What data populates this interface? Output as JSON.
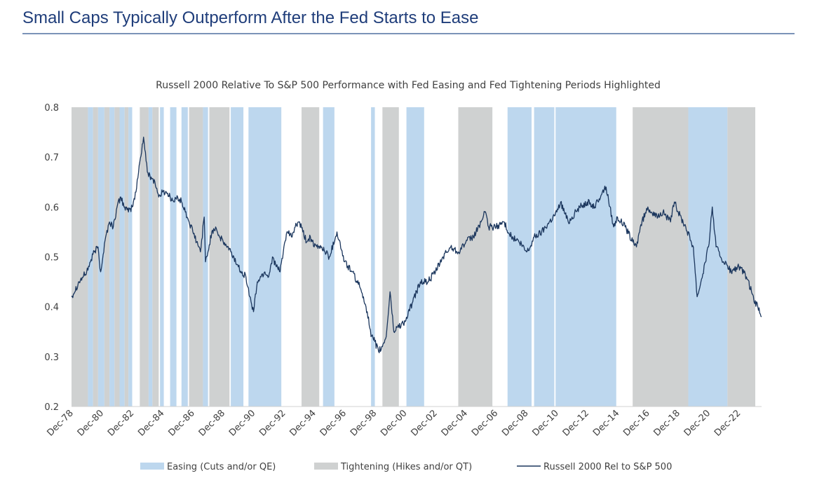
{
  "page": {
    "title": "Small Caps Typically Outperform After the Fed Starts to Ease"
  },
  "chart_data": {
    "type": "line",
    "title": "Russell 2000 Relative To S&P 500 Performance with Fed Easing and Fed Tightening Periods Highlighted",
    "xlabel": "",
    "ylabel": "",
    "x_range": [
      "1978-12",
      "2024-06"
    ],
    "ylim": [
      0.2,
      0.8
    ],
    "y_ticks": [
      "0.2",
      "0.3",
      "0.4",
      "0.5",
      "0.6",
      "0.7",
      "0.8"
    ],
    "x_ticks": [
      "Dec-78",
      "Dec-80",
      "Dec-82",
      "Dec-84",
      "Dec-86",
      "Dec-88",
      "Dec-90",
      "Dec-92",
      "Dec-94",
      "Dec-96",
      "Dec-98",
      "Dec-00",
      "Dec-02",
      "Dec-04",
      "Dec-06",
      "Dec-08",
      "Dec-10",
      "Dec-12",
      "Dec-14",
      "Dec-16",
      "Dec-18",
      "Dec-20",
      "Dec-22"
    ],
    "grid": false,
    "legend_position": "bottom",
    "colors": {
      "easing": "#bdd7ee",
      "tightening": "#cfd1d1",
      "line": "#1b365d"
    },
    "legend": [
      {
        "key": "easing",
        "label": "Easing (Cuts and/or QE)"
      },
      {
        "key": "tightening",
        "label": "Tightening (Hikes and/or QT)"
      },
      {
        "key": "line",
        "label": "Russell 2000 Rel to S&P 500"
      }
    ],
    "shaded_periods": [
      {
        "kind": "tightening",
        "start": "1978-12",
        "end": "1979-12"
      },
      {
        "kind": "easing",
        "start": "1980-01",
        "end": "1980-04"
      },
      {
        "kind": "tightening",
        "start": "1980-05",
        "end": "1980-08"
      },
      {
        "kind": "easing",
        "start": "1980-09",
        "end": "1981-01"
      },
      {
        "kind": "tightening",
        "start": "1981-02",
        "end": "1981-05"
      },
      {
        "kind": "easing",
        "start": "1981-06",
        "end": "1981-09"
      },
      {
        "kind": "tightening",
        "start": "1981-10",
        "end": "1982-01"
      },
      {
        "kind": "easing",
        "start": "1982-02",
        "end": "1982-05"
      },
      {
        "kind": "tightening",
        "start": "1982-06",
        "end": "1982-08"
      },
      {
        "kind": "easing",
        "start": "1982-09",
        "end": "1982-11"
      },
      {
        "kind": "tightening",
        "start": "1983-06",
        "end": "1983-12"
      },
      {
        "kind": "easing",
        "start": "1984-01",
        "end": "1984-03"
      },
      {
        "kind": "tightening",
        "start": "1984-04",
        "end": "1984-08"
      },
      {
        "kind": "easing",
        "start": "1984-10",
        "end": "1984-12"
      },
      {
        "kind": "easing",
        "start": "1985-06",
        "end": "1985-10"
      },
      {
        "kind": "easing",
        "start": "1986-03",
        "end": "1986-07"
      },
      {
        "kind": "tightening",
        "start": "1986-09",
        "end": "1987-07"
      },
      {
        "kind": "easing",
        "start": "1987-08",
        "end": "1987-11"
      },
      {
        "kind": "tightening",
        "start": "1988-01",
        "end": "1989-04"
      },
      {
        "kind": "easing",
        "start": "1989-06",
        "end": "1990-03"
      },
      {
        "kind": "easing",
        "start": "1990-08",
        "end": "1992-09"
      },
      {
        "kind": "tightening",
        "start": "1994-02",
        "end": "1995-03"
      },
      {
        "kind": "easing",
        "start": "1995-07",
        "end": "1996-03"
      },
      {
        "kind": "easing",
        "start": "1998-09",
        "end": "1998-11"
      },
      {
        "kind": "tightening",
        "start": "1999-06",
        "end": "2000-06"
      },
      {
        "kind": "easing",
        "start": "2001-01",
        "end": "2002-02"
      },
      {
        "kind": "tightening",
        "start": "2004-06",
        "end": "2006-08"
      },
      {
        "kind": "easing",
        "start": "2007-09",
        "end": "2009-03"
      },
      {
        "kind": "easing",
        "start": "2009-06",
        "end": "2010-09"
      },
      {
        "kind": "easing",
        "start": "2010-11",
        "end": "2014-10"
      },
      {
        "kind": "tightening",
        "start": "2015-12",
        "end": "2019-07"
      },
      {
        "kind": "easing",
        "start": "2019-08",
        "end": "2022-02"
      },
      {
        "kind": "tightening",
        "start": "2022-03",
        "end": "2023-12"
      }
    ],
    "series": [
      {
        "name": "Russell 2000 Rel to S&P 500",
        "x": [
          "1978-12",
          "1979-06",
          "1979-12",
          "1980-03",
          "1980-06",
          "1980-09",
          "1980-11",
          "1981-03",
          "1981-06",
          "1981-09",
          "1981-12",
          "1982-03",
          "1982-06",
          "1982-09",
          "1982-12",
          "1983-03",
          "1983-06",
          "1983-09",
          "1983-12",
          "1984-03",
          "1984-06",
          "1984-09",
          "1984-12",
          "1985-03",
          "1985-06",
          "1985-09",
          "1985-12",
          "1986-03",
          "1986-06",
          "1986-09",
          "1986-12",
          "1987-03",
          "1987-06",
          "1987-09",
          "1987-10",
          "1987-12",
          "1988-03",
          "1988-06",
          "1988-09",
          "1988-12",
          "1989-06",
          "1989-12",
          "1990-03",
          "1990-06",
          "1990-09",
          "1990-12",
          "1991-03",
          "1991-06",
          "1991-09",
          "1991-12",
          "1992-03",
          "1992-06",
          "1992-09",
          "1992-12",
          "1993-03",
          "1993-06",
          "1993-09",
          "1993-12",
          "1994-03",
          "1994-06",
          "1994-09",
          "1994-12",
          "1995-06",
          "1995-12",
          "1996-06",
          "1996-12",
          "1997-06",
          "1997-12",
          "1998-03",
          "1998-06",
          "1998-09",
          "1998-12",
          "1999-03",
          "1999-06",
          "1999-09",
          "1999-12",
          "2000-03",
          "2000-06",
          "2000-12",
          "2001-06",
          "2001-12",
          "2002-06",
          "2002-12",
          "2003-06",
          "2003-12",
          "2004-06",
          "2004-12",
          "2005-06",
          "2005-12",
          "2006-03",
          "2006-06",
          "2006-12",
          "2007-06",
          "2007-12",
          "2008-06",
          "2008-12",
          "2009-03",
          "2009-06",
          "2009-12",
          "2010-06",
          "2010-12",
          "2011-03",
          "2011-09",
          "2011-12",
          "2012-06",
          "2012-12",
          "2013-06",
          "2013-12",
          "2014-03",
          "2014-09",
          "2014-12",
          "2015-06",
          "2015-12",
          "2016-03",
          "2016-06",
          "2016-12",
          "2017-06",
          "2017-12",
          "2018-06",
          "2018-09",
          "2018-12",
          "2019-06",
          "2019-12",
          "2020-03",
          "2020-06",
          "2020-12",
          "2021-03",
          "2021-06",
          "2021-12",
          "2022-06",
          "2022-12",
          "2023-06",
          "2023-10",
          "2023-12",
          "2024-03",
          "2024-06"
        ],
        "y": [
          0.42,
          0.45,
          0.47,
          0.49,
          0.51,
          0.52,
          0.47,
          0.54,
          0.57,
          0.56,
          0.6,
          0.62,
          0.6,
          0.59,
          0.6,
          0.63,
          0.69,
          0.74,
          0.67,
          0.66,
          0.65,
          0.62,
          0.63,
          0.63,
          0.62,
          0.61,
          0.62,
          0.61,
          0.59,
          0.57,
          0.55,
          0.53,
          0.51,
          0.58,
          0.49,
          0.51,
          0.55,
          0.56,
          0.54,
          0.53,
          0.51,
          0.48,
          0.47,
          0.46,
          0.42,
          0.39,
          0.45,
          0.46,
          0.47,
          0.46,
          0.5,
          0.48,
          0.47,
          0.52,
          0.55,
          0.54,
          0.56,
          0.57,
          0.55,
          0.53,
          0.54,
          0.52,
          0.52,
          0.5,
          0.55,
          0.49,
          0.47,
          0.44,
          0.42,
          0.39,
          0.34,
          0.33,
          0.31,
          0.32,
          0.34,
          0.43,
          0.35,
          0.36,
          0.37,
          0.41,
          0.45,
          0.45,
          0.47,
          0.5,
          0.52,
          0.51,
          0.53,
          0.54,
          0.57,
          0.59,
          0.56,
          0.56,
          0.57,
          0.54,
          0.53,
          0.51,
          0.52,
          0.54,
          0.55,
          0.57,
          0.59,
          0.61,
          0.57,
          0.58,
          0.6,
          0.61,
          0.6,
          0.63,
          0.64,
          0.56,
          0.58,
          0.56,
          0.53,
          0.52,
          0.56,
          0.6,
          0.58,
          0.59,
          0.57,
          0.61,
          0.59,
          0.56,
          0.52,
          0.42,
          0.45,
          0.52,
          0.6,
          0.52,
          0.49,
          0.47,
          0.48,
          0.46,
          0.43,
          0.41,
          0.4,
          0.38
        ]
      }
    ]
  }
}
